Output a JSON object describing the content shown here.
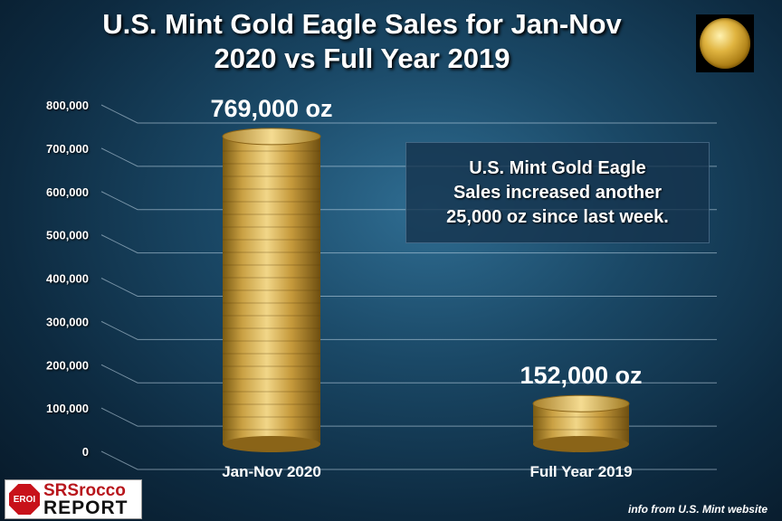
{
  "chart_data": {
    "type": "bar",
    "title": "U.S. Mint Gold Eagle Sales for Jan-Nov\n2020 vs Full Year 2019",
    "categories": [
      "Jan-Nov 2020",
      "Full Year 2019"
    ],
    "values": [
      769000,
      152000
    ],
    "value_labels": [
      "769,000 oz",
      "152,000 oz"
    ],
    "yticks": [
      "0",
      "100,000",
      "200,000",
      "300,000",
      "400,000",
      "500,000",
      "600,000",
      "700,000",
      "800,000"
    ],
    "ylim": [
      0,
      800000
    ],
    "grid": true,
    "legend": "none",
    "annotation": "U.S. Mint Gold Eagle\nSales increased another\n25,000 oz since last week.",
    "bar_color": "#c9a043"
  },
  "logo": {
    "badge": "EROI",
    "top": "SRSrocco",
    "bottom": "REPORT"
  },
  "source": "info from U.S. Mint website",
  "coin_icon": "gold-eagle-coin-icon"
}
